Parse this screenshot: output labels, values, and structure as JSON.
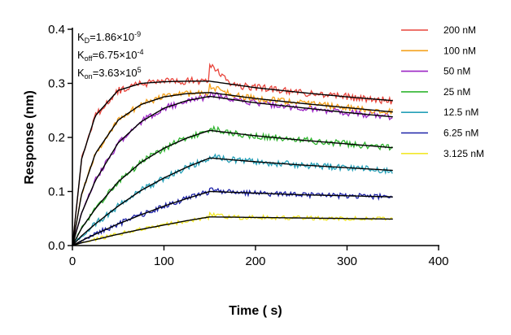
{
  "chart_data": {
    "type": "line",
    "title": "",
    "xlabel": "Time ( s)",
    "ylabel": "Response (nm)",
    "xlim": [
      0,
      400
    ],
    "ylim": [
      0,
      0.4
    ],
    "x_ticks": [
      0,
      100,
      200,
      300,
      400
    ],
    "y_ticks": [
      0.0,
      0.1,
      0.2,
      0.3,
      0.4
    ],
    "x_tick_labels": [
      "0",
      "100",
      "200",
      "300",
      "400"
    ],
    "y_tick_labels": [
      "0.0",
      "0.1",
      "0.2",
      "0.3",
      "0.4"
    ],
    "grid": false,
    "legend_position": "right",
    "association_end_s": 150,
    "end_time_s": 350,
    "annotations": [
      {
        "name": "KD",
        "letter": "K",
        "sub": "D",
        "rest": "=1.86×10",
        "sup": "-9"
      },
      {
        "name": "Koff",
        "letter": "K",
        "sub": "off",
        "rest": "=6.75×10",
        "sup": "-4"
      },
      {
        "name": "Kon",
        "letter": "K",
        "sub": "on",
        "rest": "=3.63×10",
        "sup": "5"
      }
    ],
    "fit_color": "#000000",
    "series": [
      {
        "name": "200 nM",
        "color": "#e8453c",
        "fit": [
          [
            0,
            0
          ],
          [
            10,
            0.16
          ],
          [
            25,
            0.24
          ],
          [
            50,
            0.287
          ],
          [
            75,
            0.3
          ],
          [
            100,
            0.303
          ],
          [
            125,
            0.304
          ],
          [
            150,
            0.304
          ],
          [
            200,
            0.292
          ],
          [
            250,
            0.283
          ],
          [
            300,
            0.275
          ],
          [
            350,
            0.268
          ]
        ],
        "noise": 0.007,
        "jump": 0.028,
        "seed": 1
      },
      {
        "name": "100 nM",
        "color": "#f5a11b",
        "fit": [
          [
            0,
            0
          ],
          [
            10,
            0.095
          ],
          [
            25,
            0.17
          ],
          [
            50,
            0.232
          ],
          [
            75,
            0.261
          ],
          [
            100,
            0.275
          ],
          [
            125,
            0.281
          ],
          [
            150,
            0.283
          ],
          [
            200,
            0.272
          ],
          [
            250,
            0.263
          ],
          [
            300,
            0.255
          ],
          [
            350,
            0.247
          ]
        ],
        "noise": 0.006,
        "jump": 0.012,
        "seed": 2
      },
      {
        "name": "50 nM",
        "color": "#9b24c4",
        "fit": [
          [
            0,
            0
          ],
          [
            10,
            0.06
          ],
          [
            25,
            0.12
          ],
          [
            50,
            0.19
          ],
          [
            75,
            0.229
          ],
          [
            100,
            0.254
          ],
          [
            125,
            0.268
          ],
          [
            150,
            0.276
          ],
          [
            200,
            0.264
          ],
          [
            250,
            0.255
          ],
          [
            300,
            0.246
          ],
          [
            350,
            0.238
          ]
        ],
        "noise": 0.006,
        "jump": 0.004,
        "seed": 3
      },
      {
        "name": "25 nM",
        "color": "#2fb52f",
        "fit": [
          [
            0,
            0
          ],
          [
            10,
            0.032
          ],
          [
            25,
            0.068
          ],
          [
            50,
            0.118
          ],
          [
            75,
            0.154
          ],
          [
            100,
            0.18
          ],
          [
            125,
            0.199
          ],
          [
            150,
            0.213
          ],
          [
            200,
            0.203
          ],
          [
            250,
            0.195
          ],
          [
            300,
            0.188
          ],
          [
            350,
            0.181
          ]
        ],
        "noise": 0.006,
        "jump": 0.004,
        "seed": 4
      },
      {
        "name": "12.5 nM",
        "color": "#25a0b8",
        "fit": [
          [
            0,
            0
          ],
          [
            10,
            0.018
          ],
          [
            25,
            0.04
          ],
          [
            50,
            0.073
          ],
          [
            75,
            0.102
          ],
          [
            100,
            0.125
          ],
          [
            125,
            0.145
          ],
          [
            150,
            0.162
          ],
          [
            200,
            0.155
          ],
          [
            250,
            0.149
          ],
          [
            300,
            0.144
          ],
          [
            350,
            0.139
          ]
        ],
        "noise": 0.006,
        "jump": 0.002,
        "seed": 5
      },
      {
        "name": "6.25 nM",
        "color": "#1d22a8",
        "fit": [
          [
            0,
            0
          ],
          [
            10,
            0.009
          ],
          [
            25,
            0.021
          ],
          [
            50,
            0.04
          ],
          [
            75,
            0.057
          ],
          [
            100,
            0.073
          ],
          [
            125,
            0.087
          ],
          [
            150,
            0.1
          ],
          [
            200,
            0.097
          ],
          [
            250,
            0.094
          ],
          [
            300,
            0.092
          ],
          [
            350,
            0.09
          ]
        ],
        "noise": 0.005,
        "jump": 0.003,
        "seed": 6
      },
      {
        "name": "3.125 nM",
        "color": "#f2e82a",
        "fit": [
          [
            0,
            0
          ],
          [
            10,
            0.005
          ],
          [
            25,
            0.011
          ],
          [
            50,
            0.021
          ],
          [
            75,
            0.03
          ],
          [
            100,
            0.038
          ],
          [
            125,
            0.046
          ],
          [
            150,
            0.053
          ],
          [
            200,
            0.052
          ],
          [
            250,
            0.051
          ],
          [
            300,
            0.05
          ],
          [
            350,
            0.049
          ]
        ],
        "noise": 0.004,
        "jump": 0.004,
        "seed": 7
      }
    ]
  }
}
